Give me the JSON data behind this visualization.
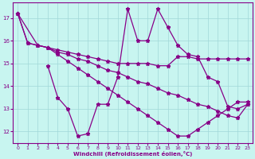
{
  "background_color": "#c8f5f0",
  "grid_color": "#a0d8d8",
  "line_color": "#880088",
  "xlabel": "Windchill (Refroidissement éolien,°C)",
  "xlim": [
    -0.5,
    23.5
  ],
  "ylim": [
    11.5,
    17.7
  ],
  "yticks": [
    12,
    13,
    14,
    15,
    16,
    17
  ],
  "xticks": [
    0,
    1,
    2,
    3,
    4,
    5,
    6,
    7,
    8,
    9,
    10,
    11,
    12,
    13,
    14,
    15,
    16,
    17,
    18,
    19,
    20,
    21,
    22,
    23
  ],
  "line1_x": [
    0,
    1,
    2,
    3,
    4,
    5,
    6,
    7,
    8,
    9,
    10,
    11,
    12,
    13,
    14,
    15,
    16,
    17,
    18,
    19,
    20,
    21,
    22,
    23
  ],
  "line1_y": [
    17.2,
    15.9,
    15.8,
    15.7,
    15.6,
    15.5,
    15.4,
    15.3,
    15.2,
    15.1,
    15.0,
    15.0,
    15.0,
    15.0,
    14.9,
    14.9,
    15.3,
    15.3,
    15.2,
    15.2,
    15.2,
    15.2,
    15.2,
    15.2
  ],
  "line2_x": [
    0,
    1,
    2,
    3,
    4,
    5,
    6,
    7,
    8,
    9,
    10,
    11,
    12,
    13,
    14,
    15,
    16,
    17,
    18,
    19,
    20,
    21,
    22,
    23
  ],
  "line2_y": [
    17.2,
    15.9,
    15.8,
    15.7,
    15.5,
    15.4,
    15.2,
    15.1,
    14.9,
    14.7,
    14.6,
    14.4,
    14.2,
    14.1,
    13.9,
    13.7,
    13.6,
    13.4,
    13.2,
    13.1,
    12.9,
    12.7,
    12.6,
    13.2
  ],
  "line3_x": [
    0,
    2,
    3,
    4,
    5,
    6,
    7,
    8,
    9,
    10,
    11,
    12,
    13,
    14,
    15,
    16,
    17,
    18,
    19,
    20,
    21,
    22,
    23
  ],
  "line3_y": [
    17.2,
    15.8,
    15.7,
    15.4,
    15.1,
    14.8,
    14.5,
    14.2,
    13.9,
    13.6,
    13.3,
    13.0,
    12.7,
    12.4,
    12.1,
    11.8,
    11.8,
    12.1,
    12.4,
    12.7,
    13.0,
    13.3,
    13.3
  ],
  "line4_x": [
    3,
    4,
    5,
    6,
    7,
    8,
    9,
    10,
    11,
    12,
    13,
    14,
    15,
    16,
    17,
    18,
    19,
    20,
    21,
    22,
    23
  ],
  "line4_y": [
    14.9,
    13.5,
    13.0,
    11.8,
    11.9,
    13.2,
    13.2,
    14.4,
    17.4,
    16.0,
    16.0,
    17.4,
    16.6,
    15.8,
    15.4,
    15.3,
    14.4,
    14.2,
    13.1,
    13.0,
    13.2
  ]
}
